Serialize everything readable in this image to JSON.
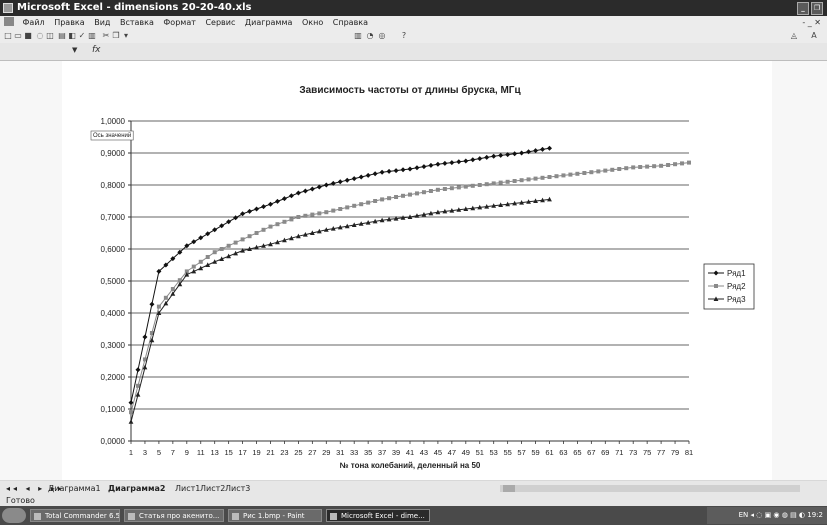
{
  "window": {
    "title": "Microsoft Excel - dimensions 20-20-40.xls"
  },
  "menu": {
    "items": [
      "Файл",
      "Правка",
      "Вид",
      "Вставка",
      "Формат",
      "Сервис",
      "Диаграмма",
      "Окно",
      "Справка"
    ]
  },
  "formula": {
    "fx": "fx"
  },
  "chart_data": {
    "type": "line",
    "title": "Зависимость частоты от длины бруска, МГц",
    "xlabel": "№ тона колебаний, деленный на 50",
    "ylabel": "",
    "axis_tooltip": "Ось значений",
    "ylim": [
      0,
      1
    ],
    "y_ticks": [
      "0,0000",
      "0,1000",
      "0,2000",
      "0,3000",
      "0,4000",
      "0,5000",
      "0,6000",
      "0,7000",
      "0,8000",
      "0,9000",
      "1,0000"
    ],
    "x": [
      1,
      3,
      5,
      7,
      9,
      11,
      13,
      15,
      17,
      19,
      21,
      23,
      25,
      27,
      29,
      31,
      33,
      35,
      37,
      39,
      41,
      43,
      45,
      47,
      49,
      51,
      53,
      55,
      57,
      59,
      61,
      63,
      65,
      67,
      69,
      71,
      73,
      75,
      77,
      79,
      81
    ],
    "grid": true,
    "legend": "right",
    "series": [
      {
        "name": "Ряд1",
        "color": "#111111",
        "marker": "diamond",
        "points": [
          [
            1,
            0.12
          ],
          [
            5,
            0.53
          ],
          [
            9,
            0.61
          ],
          [
            13,
            0.66
          ],
          [
            17,
            0.71
          ],
          [
            21,
            0.74
          ],
          [
            25,
            0.775
          ],
          [
            29,
            0.8
          ],
          [
            33,
            0.82
          ],
          [
            37,
            0.84
          ],
          [
            41,
            0.85
          ],
          [
            45,
            0.865
          ],
          [
            49,
            0.875
          ],
          [
            53,
            0.89
          ],
          [
            57,
            0.9
          ],
          [
            61,
            0.915
          ]
        ]
      },
      {
        "name": "Ряд2",
        "color": "#8a8a8a",
        "marker": "square",
        "points": [
          [
            1,
            0.09
          ],
          [
            5,
            0.42
          ],
          [
            9,
            0.53
          ],
          [
            13,
            0.59
          ],
          [
            17,
            0.63
          ],
          [
            21,
            0.67
          ],
          [
            25,
            0.7
          ],
          [
            29,
            0.715
          ],
          [
            33,
            0.735
          ],
          [
            37,
            0.755
          ],
          [
            41,
            0.77
          ],
          [
            45,
            0.785
          ],
          [
            49,
            0.795
          ],
          [
            53,
            0.805
          ],
          [
            57,
            0.815
          ],
          [
            61,
            0.825
          ],
          [
            65,
            0.835
          ],
          [
            69,
            0.845
          ],
          [
            73,
            0.855
          ],
          [
            77,
            0.86
          ],
          [
            81,
            0.87
          ]
        ]
      },
      {
        "name": "Ряд3",
        "color": "#222222",
        "marker": "triangle",
        "points": [
          [
            1,
            0.06
          ],
          [
            5,
            0.4
          ],
          [
            9,
            0.52
          ],
          [
            13,
            0.56
          ],
          [
            17,
            0.595
          ],
          [
            21,
            0.615
          ],
          [
            25,
            0.64
          ],
          [
            29,
            0.66
          ],
          [
            33,
            0.675
          ],
          [
            37,
            0.69
          ],
          [
            41,
            0.7
          ],
          [
            45,
            0.715
          ],
          [
            49,
            0.725
          ],
          [
            53,
            0.735
          ],
          [
            57,
            0.745
          ],
          [
            61,
            0.755
          ]
        ]
      }
    ]
  },
  "sheet_tabs": [
    {
      "label": "Диаграмма1",
      "active": false
    },
    {
      "label": "Диаграмма2",
      "active": true
    },
    {
      "label": "Лист1",
      "active": false
    },
    {
      "label": "Лист2",
      "active": false
    },
    {
      "label": "Лист3",
      "active": false
    }
  ],
  "status": {
    "text": "Готово"
  },
  "taskbar": {
    "items": [
      {
        "label": "Total Commander 6.5...",
        "active": false
      },
      {
        "label": "Статья про акенито...",
        "active": false
      },
      {
        "label": "Рис 1.bmp - Paint",
        "active": false
      },
      {
        "label": "Microsoft Excel - dime...",
        "active": true
      }
    ],
    "tray": {
      "lang": "EN",
      "clock": "19:2"
    }
  }
}
